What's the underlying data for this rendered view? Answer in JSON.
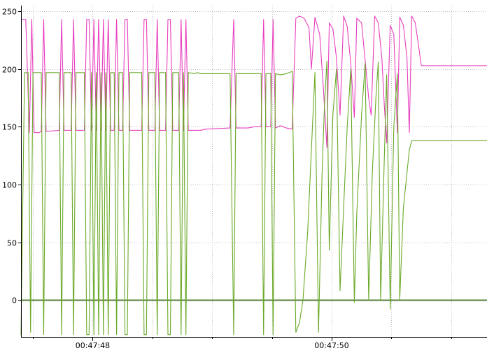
{
  "chart_data": {
    "type": "line",
    "title": "",
    "xlabel": "",
    "ylabel": "",
    "ylim": [
      -32,
      255
    ],
    "y_ticks": [
      0,
      50,
      100,
      150,
      200,
      250
    ],
    "x_unit": "seconds",
    "x_range": [
      47.4,
      51.3
    ],
    "x_ticks": [
      {
        "value": 48.0,
        "label": "00:47:48"
      },
      {
        "value": 50.0,
        "label": "00:47:50"
      }
    ],
    "grid": true,
    "legend": "none",
    "zero_line": true,
    "colors": {
      "pink": "#e83fbf",
      "green": "#6aaa28",
      "axis": "#000000",
      "grid": "#c0c0c0",
      "zero": "#5a7f3a"
    },
    "series": [
      {
        "color": "pink",
        "points": [
          [
            47.4,
            243
          ],
          [
            47.44,
            243
          ],
          [
            47.47,
            145
          ],
          [
            47.49,
            243
          ],
          [
            47.51,
            145
          ],
          [
            47.55,
            145
          ],
          [
            47.57,
            146
          ],
          [
            47.59,
            243
          ],
          [
            47.61,
            146
          ],
          [
            47.72,
            147
          ],
          [
            47.74,
            243
          ],
          [
            47.76,
            147
          ],
          [
            47.82,
            147
          ],
          [
            47.84,
            243
          ],
          [
            47.86,
            147
          ],
          [
            47.93,
            147
          ],
          [
            47.95,
            243
          ],
          [
            47.97,
            243
          ],
          [
            47.99,
            147
          ],
          [
            48.01,
            243
          ],
          [
            48.03,
            147
          ],
          [
            48.05,
            243
          ],
          [
            48.07,
            147
          ],
          [
            48.09,
            243
          ],
          [
            48.11,
            147
          ],
          [
            48.13,
            243
          ],
          [
            48.15,
            147
          ],
          [
            48.18,
            147
          ],
          [
            48.2,
            243
          ],
          [
            48.22,
            147
          ],
          [
            48.25,
            147
          ],
          [
            48.27,
            243
          ],
          [
            48.29,
            243
          ],
          [
            48.31,
            147
          ],
          [
            48.41,
            147
          ],
          [
            48.43,
            243
          ],
          [
            48.45,
            243
          ],
          [
            48.47,
            147
          ],
          [
            48.52,
            147
          ],
          [
            48.54,
            243
          ],
          [
            48.56,
            147
          ],
          [
            48.61,
            147
          ],
          [
            48.63,
            243
          ],
          [
            48.65,
            243
          ],
          [
            48.67,
            147
          ],
          [
            48.72,
            147
          ],
          [
            48.74,
            243
          ],
          [
            48.76,
            147
          ],
          [
            48.78,
            243
          ],
          [
            48.8,
            147
          ],
          [
            48.9,
            147
          ],
          [
            48.95,
            148
          ],
          [
            49.15,
            149
          ],
          [
            49.18,
            243
          ],
          [
            49.2,
            149
          ],
          [
            49.25,
            149
          ],
          [
            49.3,
            149
          ],
          [
            49.35,
            150
          ],
          [
            49.41,
            150
          ],
          [
            49.43,
            243
          ],
          [
            49.45,
            150
          ],
          [
            49.49,
            150
          ],
          [
            49.51,
            243
          ],
          [
            49.53,
            149
          ],
          [
            49.57,
            151
          ],
          [
            49.62,
            149
          ],
          [
            49.67,
            148
          ],
          [
            49.7,
            244
          ],
          [
            49.73,
            246
          ],
          [
            49.77,
            244
          ],
          [
            49.81,
            236
          ],
          [
            49.83,
            200
          ],
          [
            49.86,
            245
          ],
          [
            49.9,
            230
          ],
          [
            49.93,
            185
          ],
          [
            49.96,
            132
          ],
          [
            49.98,
            240
          ],
          [
            50.01,
            235
          ],
          [
            50.04,
            210
          ],
          [
            50.07,
            160
          ],
          [
            50.1,
            246
          ],
          [
            50.13,
            237
          ],
          [
            50.16,
            205
          ],
          [
            50.19,
            158
          ],
          [
            50.21,
            244
          ],
          [
            50.25,
            240
          ],
          [
            50.28,
            208
          ],
          [
            50.31,
            175
          ],
          [
            50.33,
            160
          ],
          [
            50.36,
            246
          ],
          [
            50.39,
            240
          ],
          [
            50.42,
            210
          ],
          [
            50.44,
            170
          ],
          [
            50.46,
            136
          ],
          [
            50.49,
            238
          ],
          [
            50.52,
            230
          ],
          [
            50.55,
            145
          ],
          [
            50.57,
            245
          ],
          [
            50.6,
            238
          ],
          [
            50.63,
            210
          ],
          [
            50.65,
            145
          ],
          [
            50.67,
            246
          ],
          [
            50.7,
            240
          ],
          [
            50.73,
            218
          ],
          [
            50.75,
            203
          ],
          [
            50.8,
            203
          ],
          [
            51.3,
            203
          ]
        ]
      },
      {
        "color": "green",
        "points": [
          [
            47.4,
            -30
          ],
          [
            47.43,
            197
          ],
          [
            47.46,
            197
          ],
          [
            47.48,
            -28
          ],
          [
            47.5,
            197
          ],
          [
            47.57,
            197
          ],
          [
            47.59,
            -30
          ],
          [
            47.61,
            197
          ],
          [
            47.72,
            197
          ],
          [
            47.74,
            -30
          ],
          [
            47.76,
            197
          ],
          [
            47.82,
            197
          ],
          [
            47.84,
            -30
          ],
          [
            47.86,
            197
          ],
          [
            47.93,
            197
          ],
          [
            47.95,
            -30
          ],
          [
            47.97,
            -30
          ],
          [
            47.99,
            197
          ],
          [
            48.01,
            -30
          ],
          [
            48.03,
            197
          ],
          [
            48.05,
            -30
          ],
          [
            48.07,
            197
          ],
          [
            48.09,
            -30
          ],
          [
            48.11,
            197
          ],
          [
            48.13,
            -30
          ],
          [
            48.15,
            197
          ],
          [
            48.18,
            197
          ],
          [
            48.2,
            -30
          ],
          [
            48.22,
            197
          ],
          [
            48.25,
            197
          ],
          [
            48.27,
            -30
          ],
          [
            48.29,
            -30
          ],
          [
            48.31,
            197
          ],
          [
            48.41,
            197
          ],
          [
            48.43,
            -30
          ],
          [
            48.45,
            -30
          ],
          [
            48.47,
            197
          ],
          [
            48.52,
            197
          ],
          [
            48.54,
            -30
          ],
          [
            48.56,
            197
          ],
          [
            48.61,
            197
          ],
          [
            48.63,
            -30
          ],
          [
            48.65,
            -30
          ],
          [
            48.67,
            197
          ],
          [
            48.72,
            197
          ],
          [
            48.74,
            -30
          ],
          [
            48.76,
            197
          ],
          [
            48.78,
            -30
          ],
          [
            48.8,
            197
          ],
          [
            48.85,
            196
          ],
          [
            48.88,
            197
          ],
          [
            48.9,
            196
          ],
          [
            49.15,
            196
          ],
          [
            49.18,
            -30
          ],
          [
            49.2,
            196
          ],
          [
            49.41,
            196
          ],
          [
            49.43,
            -30
          ],
          [
            49.45,
            196
          ],
          [
            49.49,
            196
          ],
          [
            49.51,
            -30
          ],
          [
            49.53,
            196
          ],
          [
            49.57,
            195
          ],
          [
            49.62,
            196
          ],
          [
            49.67,
            198
          ],
          [
            49.7,
            -28
          ],
          [
            49.73,
            -20
          ],
          [
            49.76,
            0
          ],
          [
            49.8,
            60
          ],
          [
            49.83,
            130
          ],
          [
            49.86,
            197
          ],
          [
            49.89,
            -28
          ],
          [
            49.92,
            110
          ],
          [
            49.94,
            170
          ],
          [
            49.96,
            207
          ],
          [
            49.98,
            43
          ],
          [
            50.01,
            160
          ],
          [
            50.04,
            200
          ],
          [
            50.07,
            8
          ],
          [
            50.1,
            80
          ],
          [
            50.13,
            150
          ],
          [
            50.16,
            200
          ],
          [
            50.19,
            -2
          ],
          [
            50.21,
            75
          ],
          [
            50.25,
            160
          ],
          [
            50.28,
            205
          ],
          [
            50.31,
            0
          ],
          [
            50.34,
            110
          ],
          [
            50.37,
            175
          ],
          [
            50.39,
            206
          ],
          [
            50.41,
            0
          ],
          [
            50.44,
            120
          ],
          [
            50.46,
            195
          ],
          [
            50.49,
            -8
          ],
          [
            50.52,
            150
          ],
          [
            50.55,
            196
          ],
          [
            50.57,
            0
          ],
          [
            50.6,
            80
          ],
          [
            50.63,
            110
          ],
          [
            50.65,
            130
          ],
          [
            50.67,
            138
          ],
          [
            50.8,
            138
          ],
          [
            51.3,
            138
          ]
        ]
      }
    ]
  }
}
